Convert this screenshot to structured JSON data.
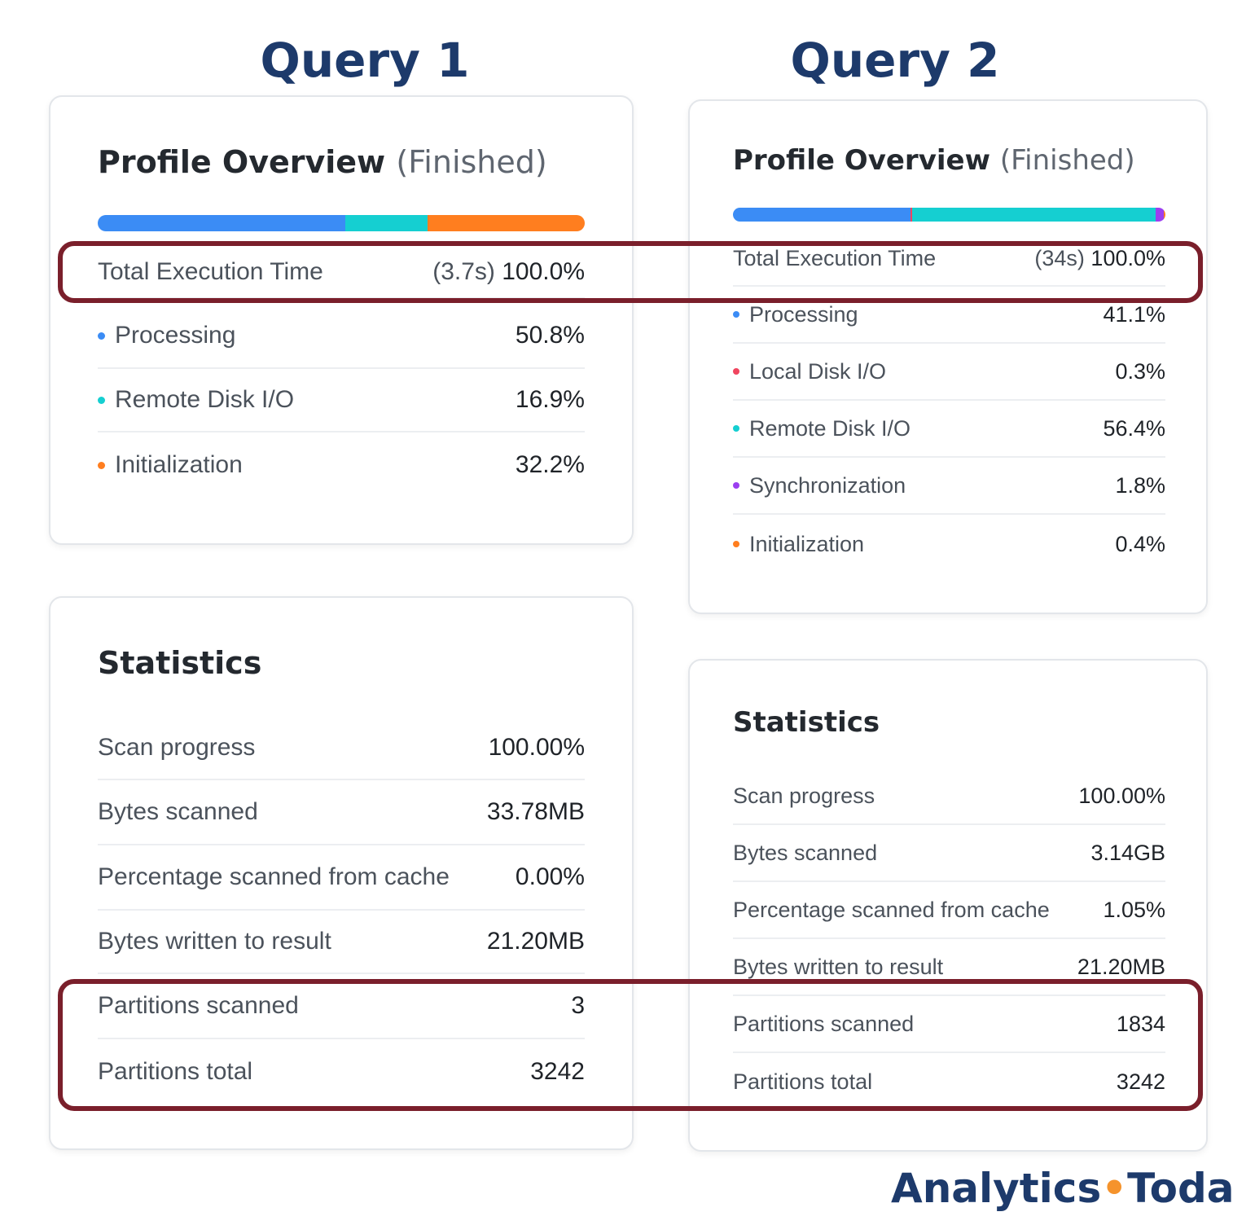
{
  "query1": {
    "title": "Query 1",
    "profile": {
      "title": "Profile Overview",
      "status": "(Finished)",
      "bar": [
        {
          "name": "Processing",
          "percent": 50.8,
          "color": "#3b8cf5"
        },
        {
          "name": "Remote Disk I/O",
          "percent": 16.9,
          "color": "#15cfd1"
        },
        {
          "name": "Initialization",
          "percent": 32.2,
          "color": "#ff7e1f"
        }
      ],
      "total": {
        "label": "Total Execution Time",
        "time": "(3.7s)",
        "value": "100.0%"
      },
      "items": [
        {
          "label": "Processing",
          "value": "50.8%",
          "color": "#3b8cf5"
        },
        {
          "label": "Remote Disk I/O",
          "value": "16.9%",
          "color": "#15cfd1"
        },
        {
          "label": "Initialization",
          "value": "32.2%",
          "color": "#ff7e1f"
        }
      ]
    },
    "statistics": {
      "title": "Statistics",
      "rows": [
        {
          "label": "Scan progress",
          "value": "100.00%"
        },
        {
          "label": "Bytes scanned",
          "value": "33.78MB"
        },
        {
          "label": "Percentage scanned from cache",
          "value": "0.00%"
        },
        {
          "label": "Bytes written to result",
          "value": "21.20MB"
        },
        {
          "label": "Partitions scanned",
          "value": "3"
        },
        {
          "label": "Partitions total",
          "value": "3242"
        }
      ]
    }
  },
  "query2": {
    "title": "Query 2",
    "profile": {
      "title": "Profile Overview",
      "status": "(Finished)",
      "bar": [
        {
          "name": "Processing",
          "percent": 41.1,
          "color": "#3b8cf5"
        },
        {
          "name": "Local Disk I/O",
          "percent": 0.3,
          "color": "#f0455f"
        },
        {
          "name": "Remote Disk I/O",
          "percent": 56.4,
          "color": "#15cfd1"
        },
        {
          "name": "Synchronization",
          "percent": 1.8,
          "color": "#9b3ff0"
        },
        {
          "name": "Initialization",
          "percent": 0.4,
          "color": "#ff7e1f"
        }
      ],
      "total": {
        "label": "Total Execution Time",
        "time": "(34s)",
        "value": "100.0%"
      },
      "items": [
        {
          "label": "Processing",
          "value": "41.1%",
          "color": "#3b8cf5"
        },
        {
          "label": "Local Disk I/O",
          "value": "0.3%",
          "color": "#f0455f"
        },
        {
          "label": "Remote Disk I/O",
          "value": "56.4%",
          "color": "#15cfd1"
        },
        {
          "label": "Synchronization",
          "value": "1.8%",
          "color": "#9b3ff0"
        },
        {
          "label": "Initialization",
          "value": "0.4%",
          "color": "#ff7e1f"
        }
      ]
    },
    "statistics": {
      "title": "Statistics",
      "rows": [
        {
          "label": "Scan progress",
          "value": "100.00%"
        },
        {
          "label": "Bytes scanned",
          "value": "3.14GB"
        },
        {
          "label": "Percentage scanned from cache",
          "value": "1.05%"
        },
        {
          "label": "Bytes written to result",
          "value": "21.20MB"
        },
        {
          "label": "Partitions scanned",
          "value": "1834"
        },
        {
          "label": "Partitions total",
          "value": "3242"
        }
      ]
    }
  },
  "highlight_color": "#7a1f2b",
  "brand": {
    "left": "Analytics",
    "dot": "•",
    "right": "Today"
  }
}
